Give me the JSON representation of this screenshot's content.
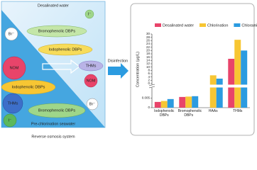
{
  "left_panel": {
    "top_label": "Desalinated water",
    "bottom_label": "Pre-chlorination seawater",
    "caption": "Reverse osmosis system",
    "items": [
      "I⁻",
      "Br⁻",
      "Bromophenolic DBPs",
      "Iodophenolic DBPs",
      "NOM",
      "THMs",
      "NOM",
      "Iodophenolic DBPs",
      "THMs",
      "Bromophenolic DBPs",
      "I⁻",
      "Br⁻"
    ]
  },
  "process_label": "Disinfection",
  "chart_data": {
    "type": "bar",
    "y_label": "Concentration (μg/L)",
    "categories": [
      "Iodophenolic DBPs",
      "Bromophenolic DBPs",
      "HAAs",
      "THMs"
    ],
    "series": [
      {
        "name": "Desalinated water",
        "color": "#e8446a",
        "values": [
          0.003,
          0.0056,
          null,
          15
        ]
      },
      {
        "name": "Chlorination",
        "color": "#f7c633",
        "values": [
          0.0035,
          0.0058,
          5,
          26.5
        ]
      },
      {
        "name": "Chloramination",
        "color": "#2b9be0",
        "values": [
          0.0045,
          0.006,
          3,
          20
        ]
      }
    ],
    "ylim": [
      0,
      30
    ],
    "yticks": [
      0,
      2,
      4,
      6,
      8,
      10,
      12,
      14,
      16,
      18,
      20,
      22,
      24,
      26,
      28,
      30
    ],
    "ylim_lower": [
      0,
      0.01
    ],
    "yticks_lower": [
      0,
      0.005
    ]
  }
}
